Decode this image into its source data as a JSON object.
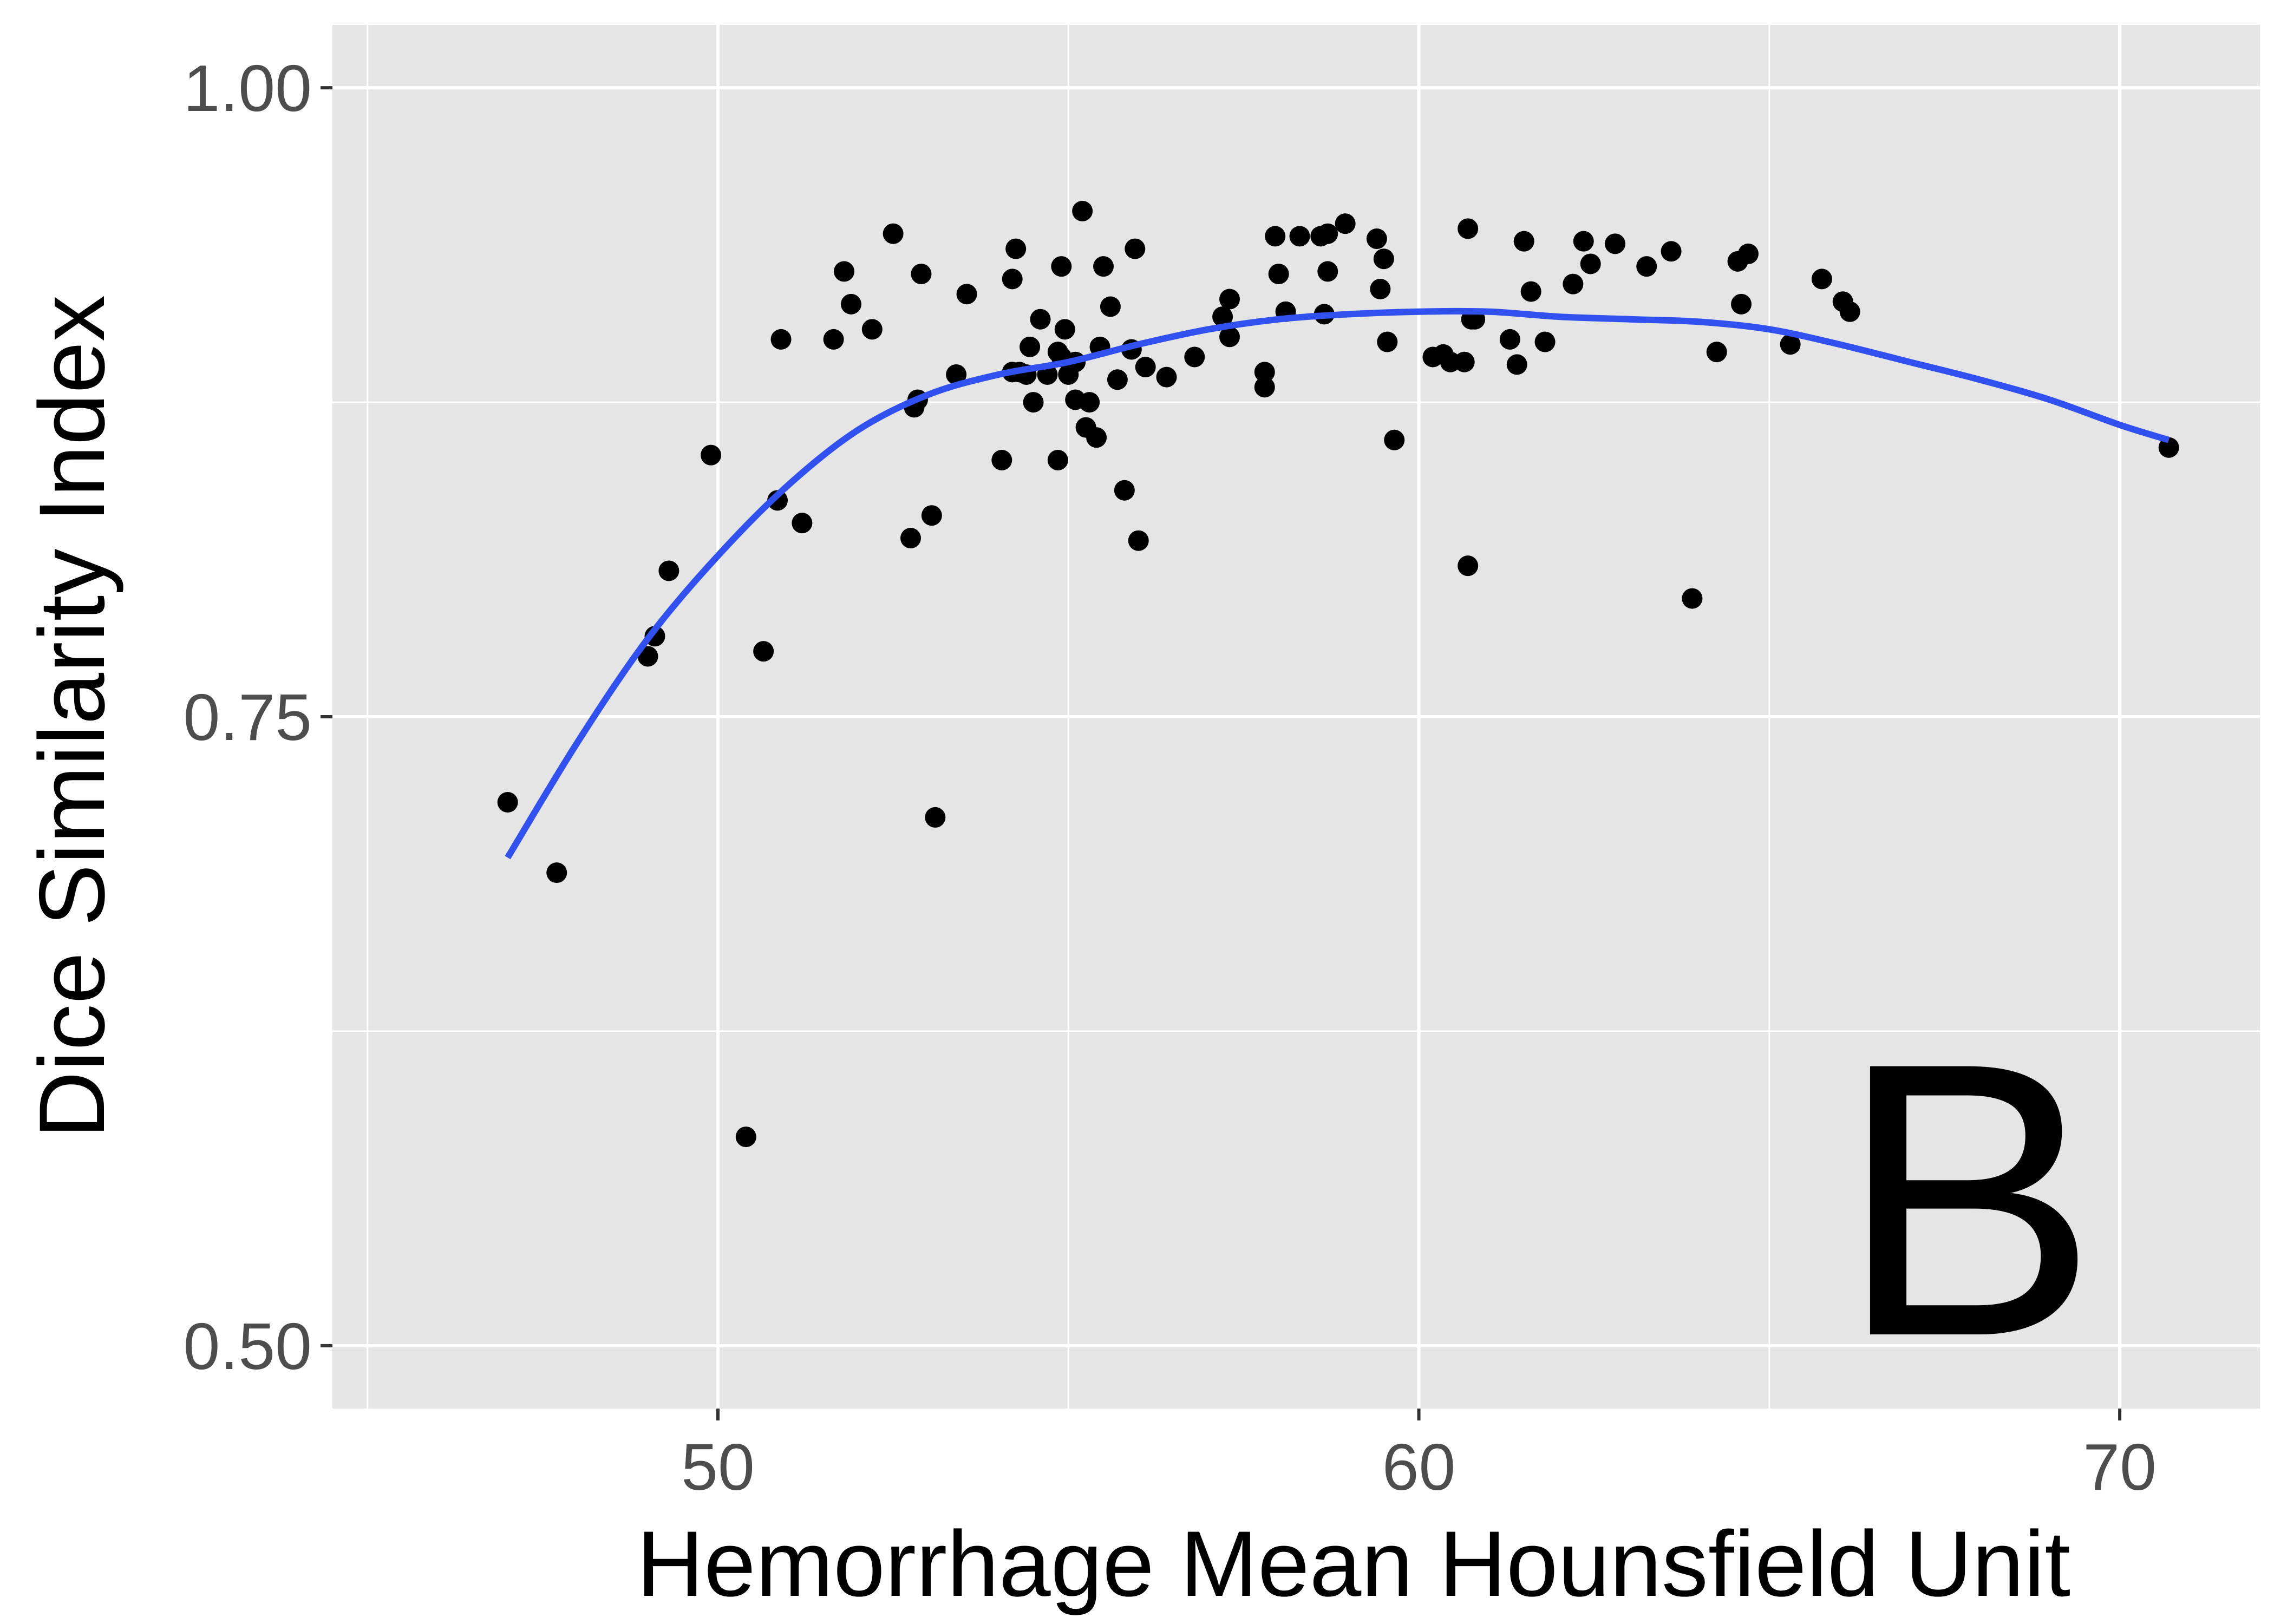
{
  "chart_data": {
    "type": "scatter",
    "title": "",
    "xlabel": "Hemorrhage Mean Hounsfield Unit",
    "ylabel": "Dice Similarity Index",
    "annotation": "B",
    "xlim": [
      44.5,
      72
    ],
    "ylim": [
      0.475,
      1.025
    ],
    "xticks": [
      50,
      60,
      70
    ],
    "xtick_labels": [
      "50",
      "60",
      "70"
    ],
    "yticks": [
      0.5,
      0.75,
      1.0
    ],
    "ytick_labels": [
      "0.50",
      "0.75",
      "1.00"
    ],
    "grid": true,
    "colors": {
      "panel": "#e5e5e5",
      "grid": "#ffffff",
      "points": "#000000",
      "smooth": "#3050f0"
    },
    "points": {
      "x": [
        47.0,
        47.7,
        49.0,
        49.1,
        49.3,
        49.9,
        50.4,
        50.65,
        50.85,
        50.9,
        51.2,
        51.65,
        51.8,
        51.9,
        52.2,
        52.5,
        52.75,
        52.8,
        52.85,
        52.9,
        53.05,
        53.1,
        53.4,
        53.55,
        54.05,
        54.2,
        54.2,
        54.25,
        54.3,
        54.4,
        54.45,
        54.5,
        54.6,
        54.7,
        54.85,
        54.85,
        54.9,
        54.9,
        54.95,
        55.0,
        55.1,
        55.1,
        55.2,
        55.25,
        55.3,
        55.4,
        55.45,
        55.5,
        55.6,
        55.7,
        55.8,
        55.9,
        55.95,
        56.0,
        56.1,
        56.4,
        56.8,
        57.2,
        57.3,
        57.3,
        57.8,
        57.8,
        57.95,
        58.0,
        58.1,
        58.3,
        58.6,
        58.65,
        58.7,
        58.7,
        58.95,
        59.4,
        59.45,
        59.5,
        59.55,
        59.65,
        60.2,
        60.35,
        60.45,
        60.65,
        60.7,
        60.7,
        60.75,
        60.8,
        61.3,
        61.4,
        61.5,
        61.6,
        61.8,
        62.2,
        62.35,
        62.45,
        62.8,
        63.25,
        63.6,
        63.9,
        64.25,
        64.55,
        64.6,
        64.7,
        65.3,
        65.75,
        66.05,
        66.15,
        70.7
      ],
      "y": [
        0.716,
        0.688,
        0.774,
        0.782,
        0.808,
        0.854,
        0.583,
        0.776,
        0.836,
        0.9,
        0.827,
        0.9,
        0.927,
        0.914,
        0.904,
        0.942,
        0.821,
        0.873,
        0.876,
        0.926,
        0.83,
        0.71,
        0.886,
        0.918,
        0.852,
        0.887,
        0.924,
        0.936,
        0.887,
        0.886,
        0.897,
        0.875,
        0.908,
        0.886,
        0.852,
        0.895,
        0.929,
        0.893,
        0.904,
        0.886,
        0.876,
        0.891,
        0.951,
        0.865,
        0.875,
        0.861,
        0.897,
        0.929,
        0.913,
        0.884,
        0.84,
        0.896,
        0.936,
        0.82,
        0.889,
        0.885,
        0.893,
        0.909,
        0.901,
        0.916,
        0.887,
        0.881,
        0.941,
        0.926,
        0.911,
        0.941,
        0.941,
        0.91,
        0.927,
        0.942,
        0.946,
        0.94,
        0.92,
        0.932,
        0.899,
        0.86,
        0.893,
        0.894,
        0.891,
        0.891,
        0.81,
        0.944,
        0.908,
        0.908,
        0.9,
        0.89,
        0.939,
        0.919,
        0.899,
        0.922,
        0.939,
        0.93,
        0.938,
        0.929,
        0.935,
        0.797,
        0.895,
        0.931,
        0.914,
        0.934,
        0.898,
        0.924,
        0.915,
        0.911,
        0.857
      ]
    },
    "smooth": {
      "method": "loess",
      "x": [
        47.0,
        48.0,
        49.0,
        50.0,
        51.0,
        52.0,
        53.0,
        54.0,
        55.0,
        56.0,
        57.0,
        58.0,
        59.0,
        60.0,
        61.0,
        62.0,
        63.0,
        64.0,
        65.0,
        66.0,
        67.0,
        68.0,
        69.0,
        70.0,
        70.7
      ],
      "y": [
        0.694,
        0.74,
        0.781,
        0.814,
        0.842,
        0.864,
        0.878,
        0.886,
        0.891,
        0.898,
        0.904,
        0.908,
        0.91,
        0.911,
        0.911,
        0.909,
        0.908,
        0.907,
        0.904,
        0.898,
        0.891,
        0.884,
        0.876,
        0.866,
        0.86
      ]
    }
  }
}
